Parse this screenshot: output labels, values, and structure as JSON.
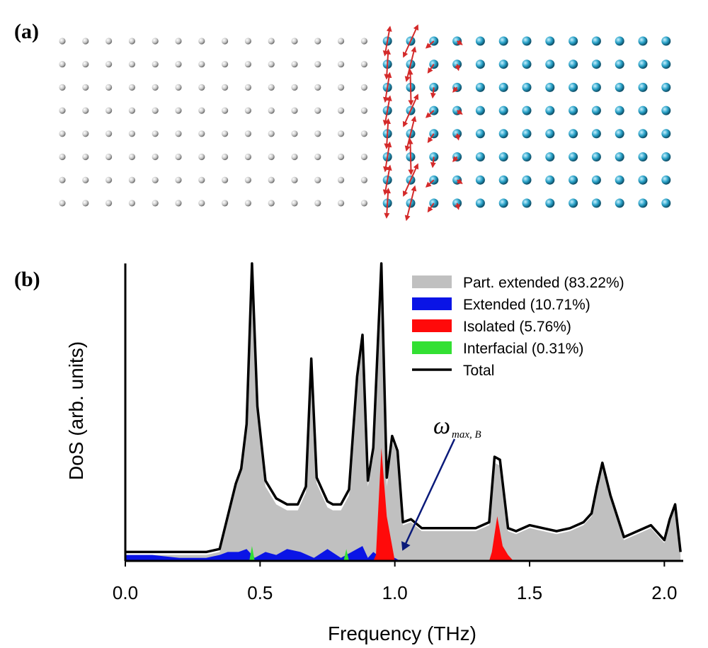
{
  "panels": {
    "a": {
      "label": "(a)"
    },
    "b": {
      "label": "(b)"
    }
  },
  "lattice": {
    "rows": 8,
    "cols": 27,
    "left_material_cols": 14,
    "left_color": "#c8c8c8",
    "right_color": "#2aa3c9",
    "arrow_color": "#d42a2a"
  },
  "colors": {
    "part_extended": "#c0c0c0",
    "extended": "#0a14e6",
    "isolated": "#ff0a0a",
    "interfacial": "#33e033",
    "total": "#000000",
    "annotation_arrow": "#0a1a7a"
  },
  "chart_data": {
    "type": "area",
    "xlabel": "Frequency (THz)",
    "ylabel": "DoS (arb. units)",
    "xlim": [
      0.0,
      2.07
    ],
    "ylim": [
      0,
      100
    ],
    "xticks": [
      "0.0",
      "0.5",
      "1.0",
      "1.5",
      "2.0"
    ],
    "legend_position": "top-right",
    "series": [
      {
        "name": "Part. extended (83.22%)",
        "x": [
          0.0,
          0.05,
          0.1,
          0.2,
          0.3,
          0.35,
          0.41,
          0.43,
          0.45,
          0.47,
          0.49,
          0.52,
          0.56,
          0.6,
          0.64,
          0.67,
          0.69,
          0.71,
          0.73,
          0.75,
          0.77,
          0.8,
          0.83,
          0.86,
          0.88,
          0.9,
          0.92,
          0.95,
          0.97,
          0.99,
          1.01,
          1.03,
          1.06,
          1.1,
          1.2,
          1.3,
          1.35,
          1.37,
          1.39,
          1.42,
          1.45,
          1.5,
          1.55,
          1.6,
          1.65,
          1.7,
          1.73,
          1.75,
          1.77,
          1.8,
          1.85,
          1.9,
          1.95,
          2.0,
          2.02,
          2.04,
          2.06
        ],
        "values": [
          2,
          2,
          2,
          2,
          2,
          3,
          25,
          30,
          45,
          100,
          50,
          25,
          19,
          17,
          17,
          23,
          67,
          26,
          22,
          18,
          17,
          17,
          22,
          60,
          75,
          25,
          35,
          100,
          25,
          40,
          36,
          12,
          13,
          10,
          10,
          10,
          12,
          33,
          32,
          10,
          9,
          11,
          10,
          9,
          10,
          12,
          15,
          24,
          32,
          21,
          7,
          9,
          11,
          6,
          13,
          18,
          2
        ]
      },
      {
        "name": "Extended (10.71%)",
        "x": [
          0.0,
          0.1,
          0.2,
          0.3,
          0.35,
          0.38,
          0.42,
          0.45,
          0.48,
          0.52,
          0.56,
          0.6,
          0.65,
          0.7,
          0.75,
          0.8,
          0.84,
          0.88,
          0.9,
          0.92,
          0.95,
          1.0,
          1.02
        ],
        "values": [
          2,
          2,
          1,
          1,
          2,
          3,
          3,
          4,
          1,
          3,
          2,
          4,
          3,
          1,
          4,
          1,
          3,
          5,
          1,
          3,
          1,
          1,
          0
        ]
      },
      {
        "name": "Isolated (5.76%)",
        "x": [
          0.92,
          0.93,
          0.95,
          0.97,
          0.99,
          1.0,
          1.35,
          1.36,
          1.38,
          1.4,
          1.42,
          1.44
        ],
        "values": [
          0,
          2,
          38,
          15,
          5,
          0,
          0,
          3,
          15,
          5,
          2,
          0
        ]
      },
      {
        "name": "Interfacial (0.31%)",
        "x": [
          0.46,
          0.47,
          0.48,
          0.81,
          0.82,
          0.83
        ],
        "values": [
          0,
          5,
          0,
          0,
          4,
          0
        ]
      },
      {
        "name": "Total",
        "x": [
          0.0,
          0.05,
          0.1,
          0.2,
          0.3,
          0.35,
          0.41,
          0.43,
          0.45,
          0.47,
          0.49,
          0.52,
          0.56,
          0.6,
          0.64,
          0.67,
          0.69,
          0.71,
          0.73,
          0.75,
          0.77,
          0.8,
          0.83,
          0.86,
          0.88,
          0.9,
          0.92,
          0.95,
          0.97,
          0.99,
          1.01,
          1.03,
          1.06,
          1.1,
          1.2,
          1.3,
          1.35,
          1.37,
          1.39,
          1.42,
          1.45,
          1.5,
          1.55,
          1.6,
          1.65,
          1.7,
          1.73,
          1.75,
          1.77,
          1.8,
          1.85,
          1.9,
          1.95,
          2.0,
          2.02,
          2.04,
          2.06
        ],
        "values": [
          3,
          3,
          3,
          3,
          3,
          4,
          26,
          31,
          46,
          100,
          52,
          27,
          21,
          19,
          19,
          25,
          68,
          28,
          24,
          20,
          19,
          19,
          24,
          62,
          76,
          27,
          38,
          100,
          28,
          42,
          37,
          13,
          14,
          11,
          11,
          11,
          13,
          35,
          34,
          11,
          10,
          12,
          11,
          10,
          11,
          13,
          16,
          25,
          33,
          22,
          8,
          10,
          12,
          7,
          14,
          19,
          3
        ]
      }
    ],
    "annotation": {
      "symbol": "ω",
      "subscript": "max, B",
      "points_to_x": 1.03
    }
  }
}
